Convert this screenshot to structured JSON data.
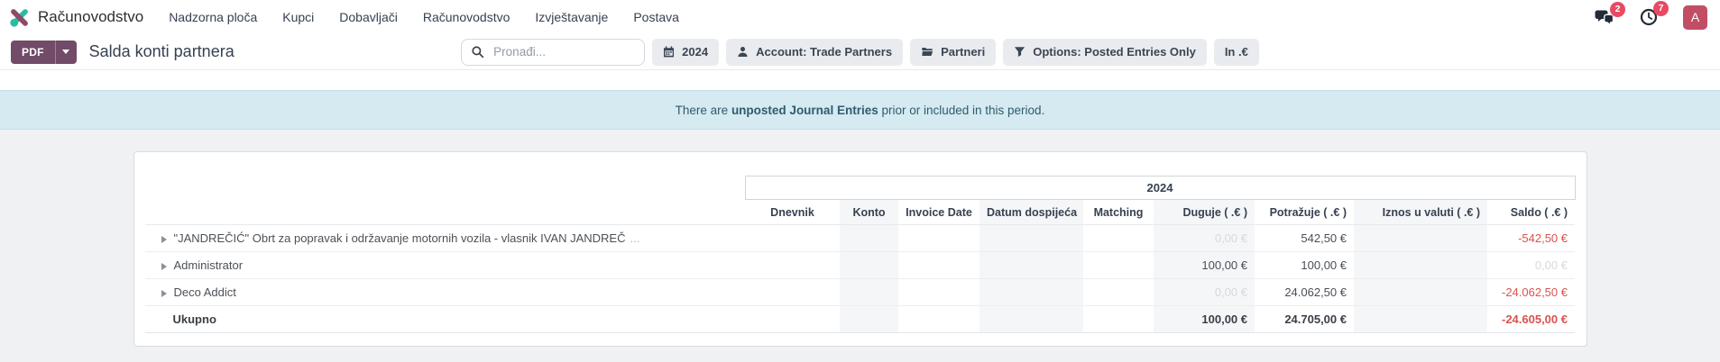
{
  "nav": {
    "brand": "Računovodstvo",
    "items": [
      "Nadzorna ploča",
      "Kupci",
      "Dobavljači",
      "Računovodstvo",
      "Izvještavanje",
      "Postava"
    ],
    "systray": {
      "chat_badge": "2",
      "clock_badge": "7",
      "avatar_letter": "A"
    }
  },
  "control": {
    "pdf_label": "PDF",
    "title": "Salda konti partnera",
    "search_placeholder": "Pronađi...",
    "filters": [
      {
        "name": "filter-date",
        "icon": "calendar-icon",
        "label": "2024"
      },
      {
        "name": "filter-account",
        "icon": "user-icon",
        "label": "Account: Trade Partners"
      },
      {
        "name": "filter-groupby",
        "icon": "folder-icon",
        "label": "Partneri"
      },
      {
        "name": "filter-options",
        "icon": "funnel-icon",
        "label": "Options: Posted Entries Only"
      },
      {
        "name": "filter-currency",
        "icon": null,
        "label": "In .€"
      }
    ]
  },
  "banner": {
    "pre": "There are ",
    "bold": "unposted Journal Entries",
    "post": " prior or included in this period."
  },
  "table": {
    "period": "2024",
    "columns": [
      "Dnevnik",
      "Konto",
      "Invoice Date",
      "Datum dospijeća",
      "Matching",
      "Duguje ( .€ )",
      "Potražuje ( .€ )",
      "Iznos u valuti ( .€ )",
      "Saldo ( .€ )"
    ],
    "banded_columns": [
      1,
      3,
      5,
      7
    ],
    "rows": [
      {
        "name": "\"JANDREČIĆ\" Obrt za popravak i održavanje motornih vozila - vlasnik IVAN JANDREČ",
        "ellipsis": "...",
        "duguje": {
          "text": "0,00 €",
          "muted": true
        },
        "potrazuje": {
          "text": "542,50 €"
        },
        "iznos": {
          "text": ""
        },
        "saldo": {
          "text": "-542,50 €",
          "neg": true
        }
      },
      {
        "name": "Administrator",
        "duguje": {
          "text": "100,00 €"
        },
        "potrazuje": {
          "text": "100,00 €"
        },
        "iznos": {
          "text": ""
        },
        "saldo": {
          "text": "0,00 €",
          "muted": true
        }
      },
      {
        "name": "Deco Addict",
        "duguje": {
          "text": "0,00 €",
          "muted": true
        },
        "potrazuje": {
          "text": "24.062,50 €"
        },
        "iznos": {
          "text": ""
        },
        "saldo": {
          "text": "-24.062,50 €",
          "neg": true
        }
      }
    ],
    "total": {
      "label": "Ukupno",
      "duguje": {
        "text": "100,00 €"
      },
      "potrazuje": {
        "text": "24.705,00 €"
      },
      "iznos": {
        "text": ""
      },
      "saldo": {
        "text": "-24.605,00 €",
        "neg": true
      }
    }
  },
  "colors": {
    "primary": "#714B67",
    "badge-red": "#e84a63",
    "avatar-bg": "#c24e66",
    "banner-bg": "#d5eaf1",
    "banner-border": "#c2dfe9",
    "banner-text": "#2f5c6d",
    "negative": "#d9534f",
    "band": "#f5f6f8",
    "muted": "#d6d9dc",
    "page-bg": "#f0f1f3",
    "text-dark": "#374151",
    "border-light": "#e8eaed",
    "filter-bg": "#e9ebee",
    "logo-teal": "#26bda5",
    "logo-maroon": "#8f4a67",
    "icon-dark": "#242c37"
  }
}
